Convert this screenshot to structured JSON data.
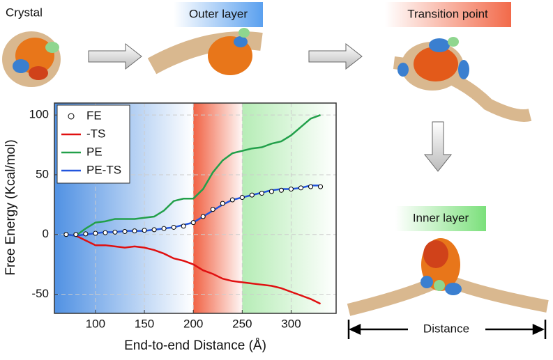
{
  "figure_labels": {
    "crystal": "Crystal",
    "outer": "Outer layer",
    "transition": "Transition point",
    "inner": "Inner layer",
    "distance": "Distance"
  },
  "chart_data": {
    "type": "line",
    "x_label": "End-to-end Distance (Å)",
    "y_label": "Free Energy (Kcal/mol)",
    "xlim": [
      58,
      346
    ],
    "ylim": [
      -66,
      110
    ],
    "xticks": [
      100,
      150,
      200,
      250,
      300
    ],
    "yticks": [
      -50,
      0,
      50,
      100
    ],
    "grid": true,
    "regions": [
      {
        "from": 58,
        "to": 200,
        "color": "#3d85e0"
      },
      {
        "from": 200,
        "to": 250,
        "color": "#f05a3a"
      },
      {
        "from": 250,
        "to": 346,
        "color": "#5cd65c"
      }
    ],
    "x": [
      70,
      80,
      90,
      100,
      110,
      120,
      130,
      140,
      150,
      160,
      170,
      180,
      190,
      200,
      210,
      220,
      230,
      240,
      250,
      260,
      270,
      280,
      290,
      300,
      310,
      320,
      330
    ],
    "series": [
      {
        "name": "FE",
        "color": "#000000",
        "marker": "circle",
        "values": [
          0,
          0,
          0.5,
          1,
          1.5,
          2,
          2.5,
          3,
          3.5,
          4,
          5,
          6,
          7,
          10,
          15,
          21,
          26,
          29,
          31,
          33,
          34.5,
          36,
          37,
          38,
          39,
          40,
          40
        ]
      },
      {
        "name": "-TS",
        "color": "#e01010",
        "marker": "line",
        "values": [
          0,
          -1,
          -5,
          -9,
          -9,
          -10,
          -11,
          -10,
          -11,
          -13,
          -16,
          -20,
          -22,
          -25,
          -30,
          -33,
          -37,
          -39,
          -40,
          -41,
          -42,
          -43,
          -45,
          -48,
          -51,
          -54,
          -58
        ]
      },
      {
        "name": "PE",
        "color": "#22a04a",
        "marker": "line",
        "values": [
          0,
          -1,
          5,
          10,
          11,
          13,
          13,
          13,
          14,
          15,
          20,
          28,
          30,
          30,
          38,
          52,
          62,
          68,
          70,
          72,
          73,
          76,
          78,
          83,
          90,
          97,
          100
        ]
      },
      {
        "name": "PE-TS",
        "color": "#2255dd",
        "marker": "line",
        "values": [
          0,
          -1,
          0,
          1,
          2,
          2,
          3,
          3,
          3,
          4,
          5,
          6,
          8,
          10,
          15,
          20,
          25,
          29,
          31,
          33,
          35,
          37,
          38,
          38,
          39,
          41,
          41
        ]
      }
    ],
    "legend": "top-left"
  }
}
